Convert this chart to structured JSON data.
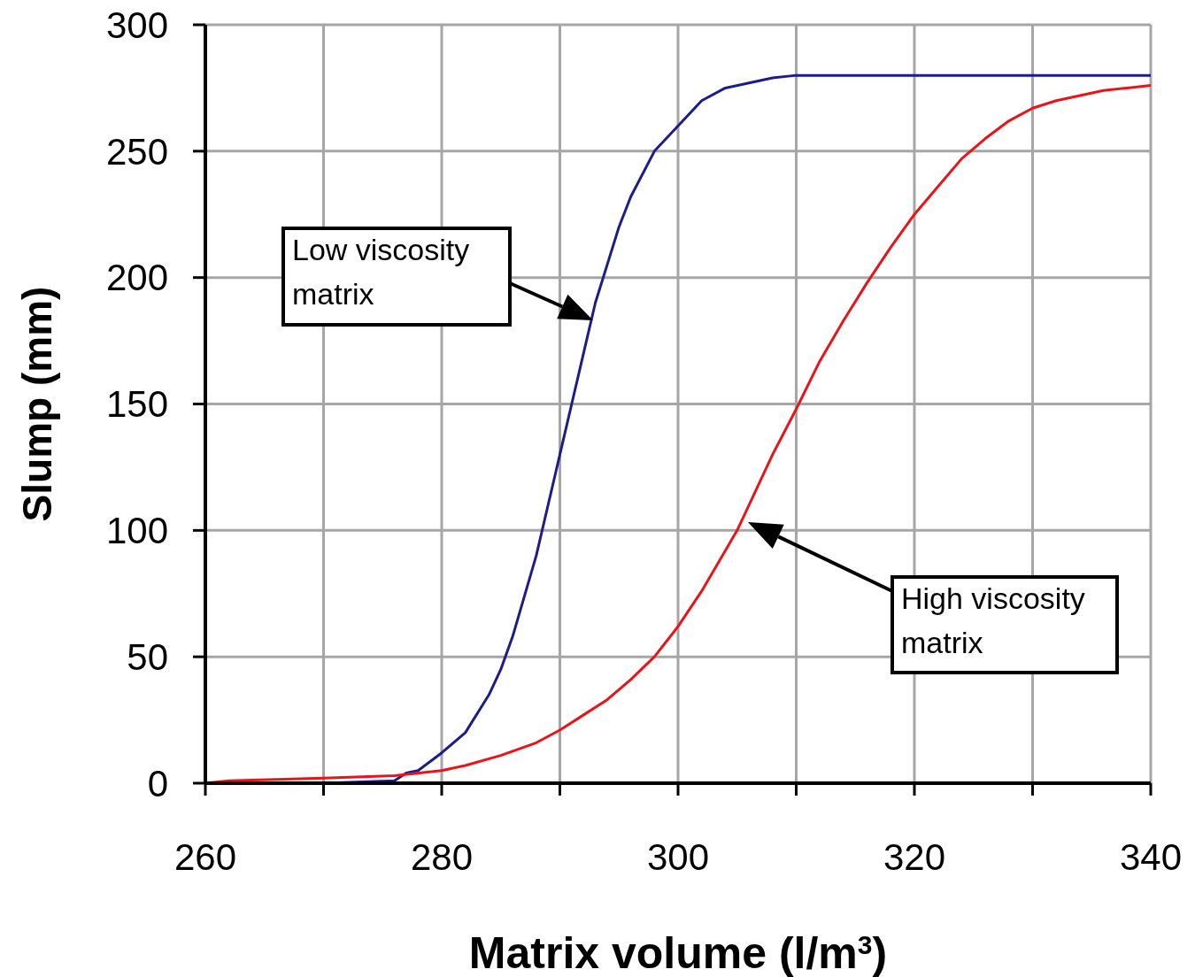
{
  "chart_data": {
    "type": "line",
    "xlabel": "Matrix volume (l/m$^{3}$)",
    "ylabel": "Slump (mm)",
    "xlim": [
      260,
      340
    ],
    "xticks": [
      260,
      {
        "value": 270,
        "label": null
      },
      280,
      {
        "value": 290,
        "label": null
      },
      300,
      {
        "value": 310,
        "label": null
      },
      320,
      {
        "value": 330,
        "label": null
      },
      340
    ],
    "ylim": [
      0,
      300
    ],
    "yticks": [
      0,
      50,
      100,
      150,
      200,
      250,
      300
    ],
    "grid": true,
    "marker": "none",
    "line_style": "solid",
    "series": [
      {
        "color": "#1c1c8a",
        "x": [
          260,
          270,
          276,
          277,
          278,
          280,
          282,
          284,
          285,
          286,
          288,
          289,
          290,
          291,
          292,
          293,
          294,
          295,
          296,
          298,
          300,
          302,
          304,
          306,
          308,
          310,
          340
        ],
        "values": [
          0,
          0,
          1,
          4,
          5,
          12,
          20,
          35,
          45,
          58,
          90,
          110,
          130,
          150,
          170,
          190,
          205,
          220,
          232,
          250,
          260,
          270,
          275,
          277,
          279,
          280,
          280
        ]
      },
      {
        "color": "#e8141a",
        "x": [
          260,
          262,
          270,
          276,
          280,
          282,
          285,
          288,
          290,
          292,
          294,
          296,
          298,
          300,
          302,
          304,
          305,
          306,
          308,
          310,
          312,
          314,
          316,
          318,
          320,
          322,
          324,
          326,
          328,
          330,
          332,
          334,
          336,
          338,
          340
        ],
        "values": [
          0,
          1,
          2,
          3,
          5,
          7,
          11,
          16,
          21,
          27,
          33,
          41,
          50,
          62,
          76,
          92,
          100,
          110,
          130,
          148,
          167,
          183,
          198,
          212,
          225,
          236,
          247,
          255,
          262,
          267,
          270,
          272,
          274,
          275,
          276
        ]
      }
    ],
    "annotations": [
      "Low viscosity\nmatrix",
      "High viscosity\nmatrix"
    ]
  }
}
